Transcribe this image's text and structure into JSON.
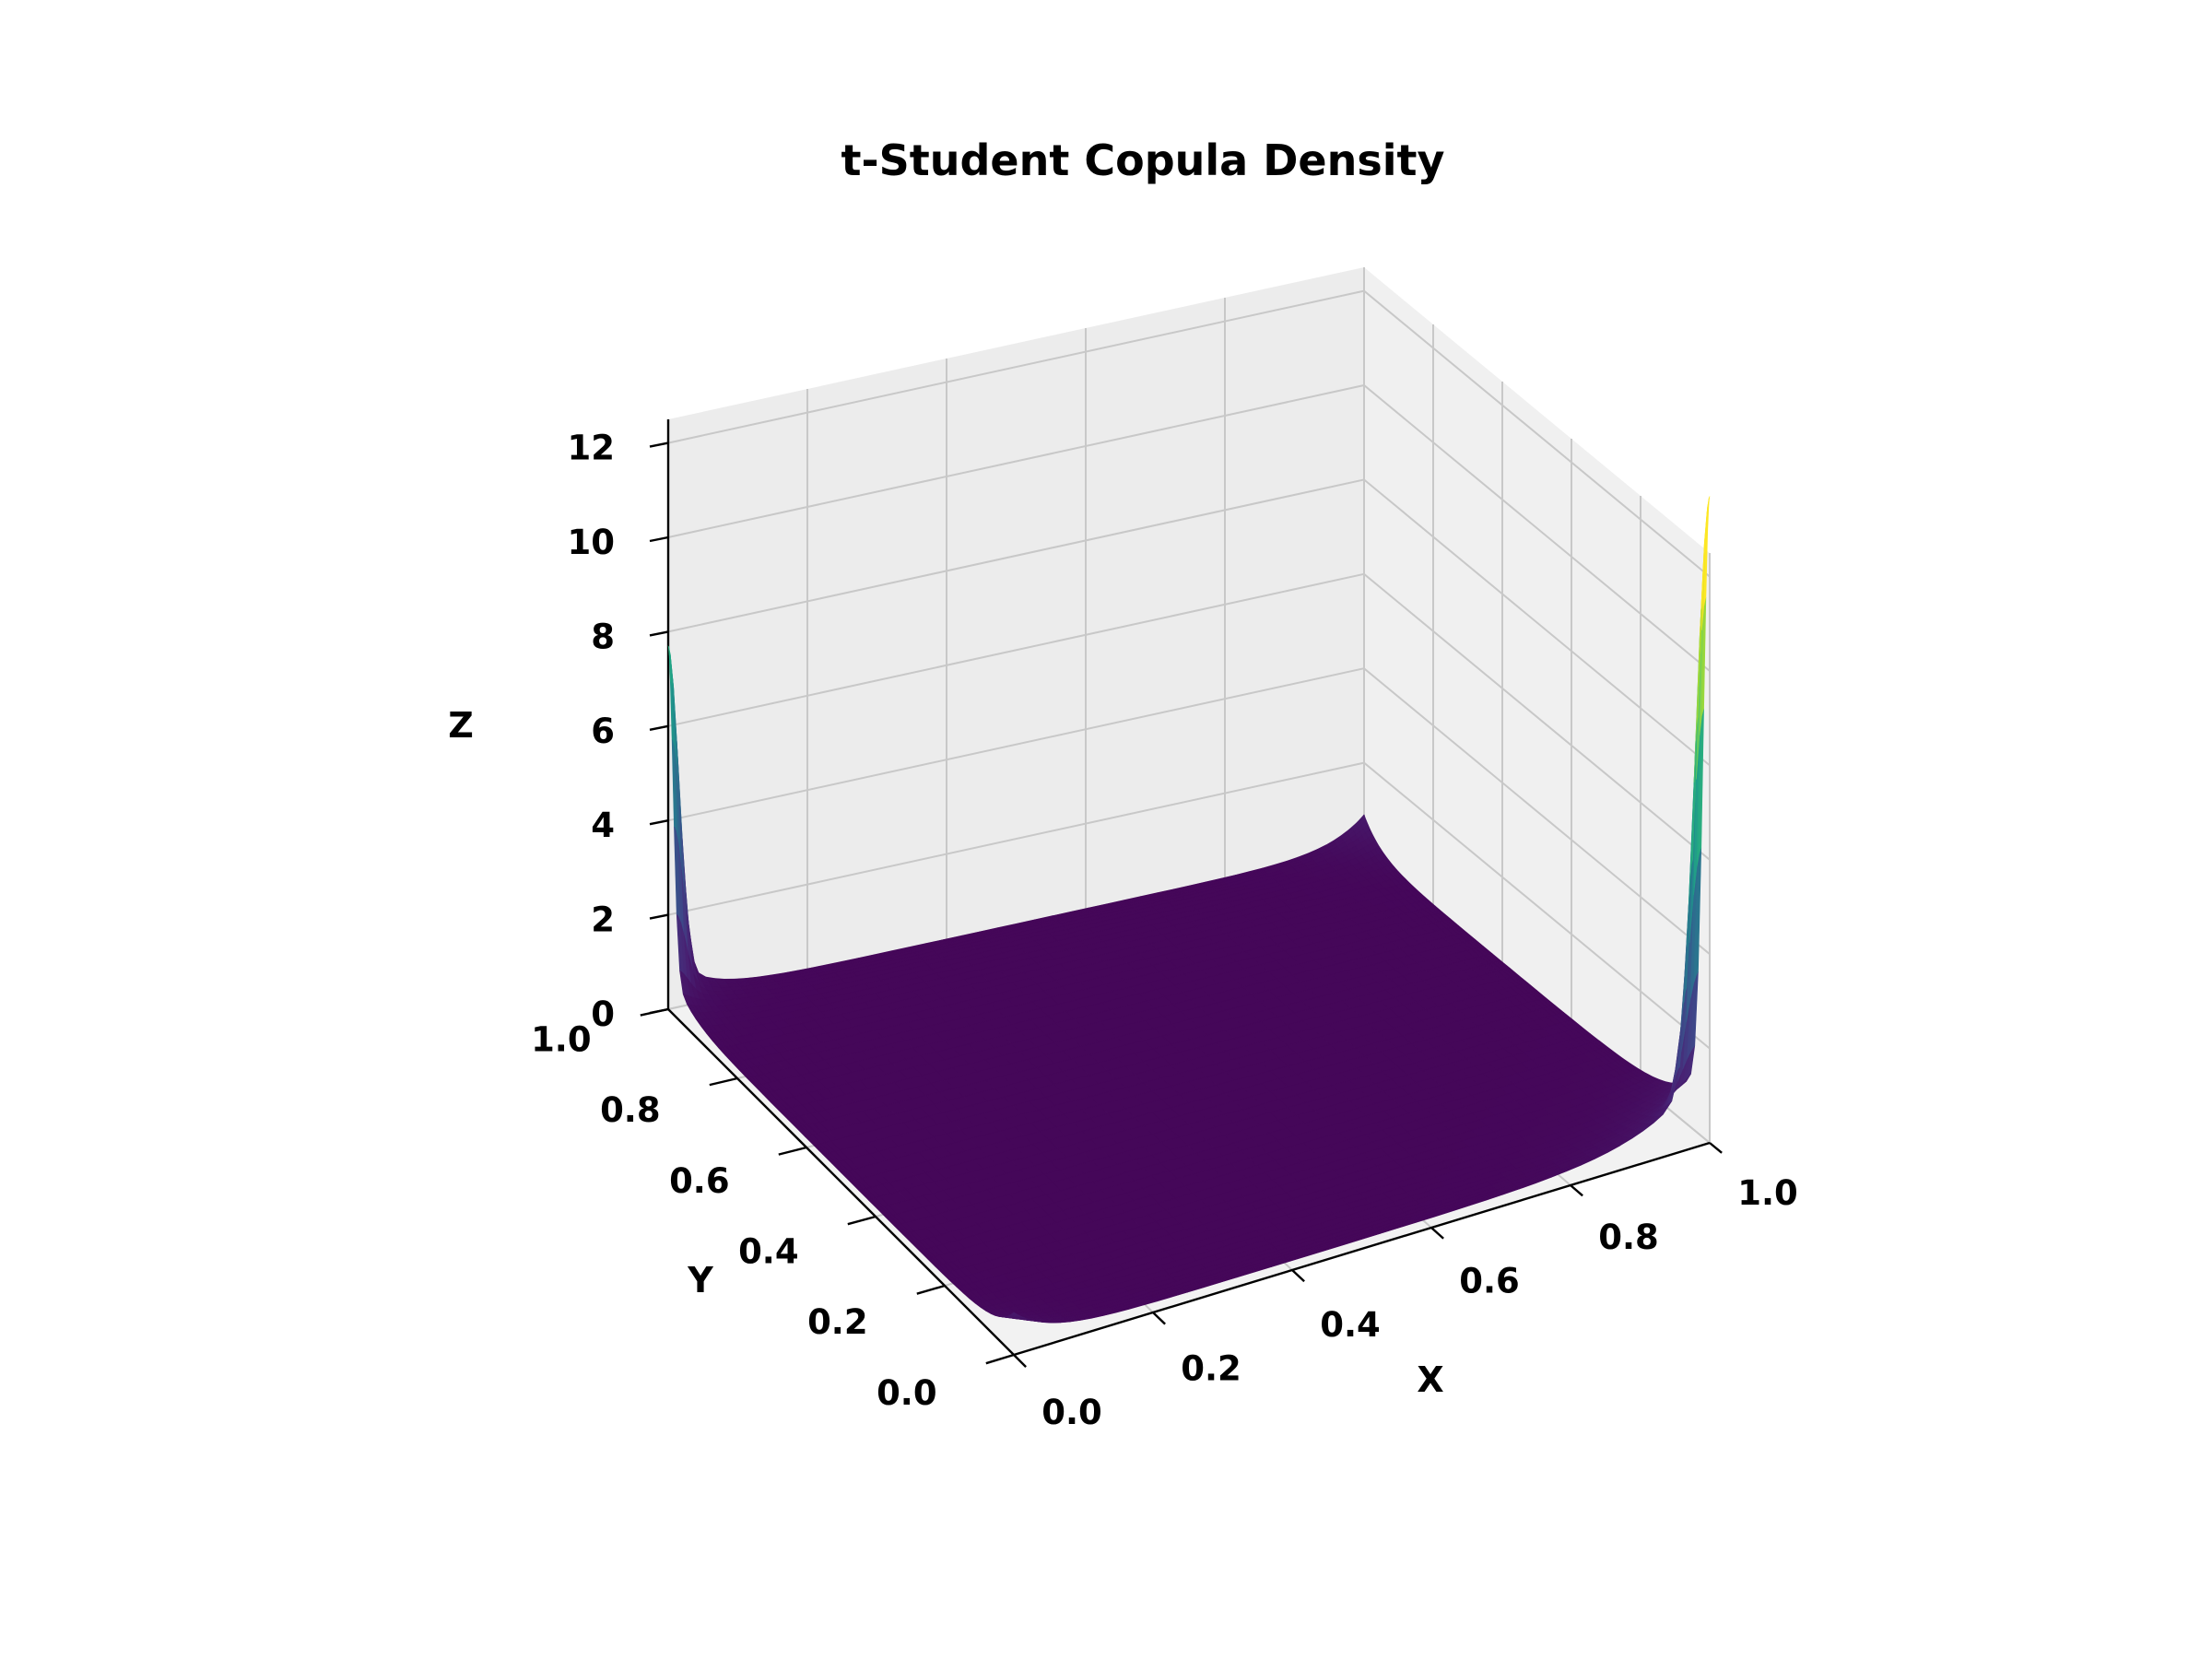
{
  "chart_data": {
    "type": "surface3d",
    "title": "t-Student Copula Density",
    "xlabel": "X",
    "ylabel": "Y",
    "zlabel": "Z",
    "xlim": [
      0,
      1
    ],
    "ylim": [
      0,
      1
    ],
    "zlim": [
      0,
      12.5
    ],
    "x_ticks": [
      "0.0",
      "0.2",
      "0.4",
      "0.6",
      "0.8",
      "1.0"
    ],
    "y_ticks": [
      "0.0",
      "0.2",
      "0.4",
      "0.6",
      "0.8",
      "1.0"
    ],
    "z_ticks": [
      "0",
      "2",
      "4",
      "6",
      "8",
      "10",
      "12"
    ],
    "grid": true,
    "colormap": "viridis",
    "features": {
      "peak_near_x0_y1": {
        "x": 0.0,
        "y": 1.0,
        "z": 6.8
      },
      "peak_near_x1_y0": {
        "x": 1.0,
        "y": 0.0,
        "z": 12.1
      },
      "corner_x0_y0": {
        "x": 0.0,
        "y": 0.0,
        "z": 0.9
      },
      "corner_x1_y1": {
        "x": 1.0,
        "y": 1.0,
        "z": 0.9
      },
      "central_level": 0.2
    }
  }
}
